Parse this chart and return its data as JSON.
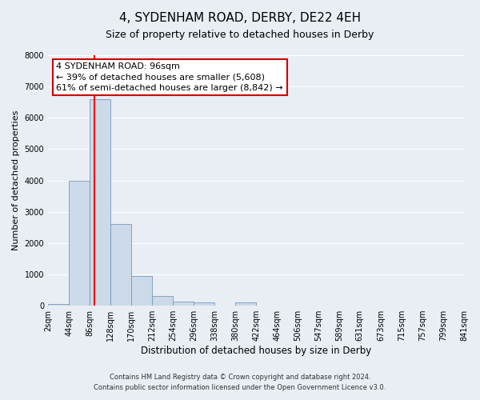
{
  "title": "4, SYDENHAM ROAD, DERBY, DE22 4EH",
  "subtitle": "Size of property relative to detached houses in Derby",
  "xlabel": "Distribution of detached houses by size in Derby",
  "ylabel": "Number of detached properties",
  "bin_edges": [
    2,
    44,
    86,
    128,
    170,
    212,
    254,
    296,
    338,
    380,
    422,
    464,
    506,
    547,
    589,
    631,
    673,
    715,
    757,
    799,
    841
  ],
  "bar_heights": [
    60,
    4000,
    6600,
    2600,
    950,
    320,
    140,
    100,
    0,
    100,
    0,
    0,
    0,
    0,
    0,
    0,
    0,
    0,
    0,
    0
  ],
  "bar_color": "#ccd9e8",
  "bar_edge_color": "#7799bb",
  "red_line_x": 96,
  "ylim": [
    0,
    8000
  ],
  "yticks": [
    0,
    1000,
    2000,
    3000,
    4000,
    5000,
    6000,
    7000,
    8000
  ],
  "annotation_text": "4 SYDENHAM ROAD: 96sqm\n← 39% of detached houses are smaller (5,608)\n61% of semi-detached houses are larger (8,842) →",
  "annotation_box_color": "#ffffff",
  "annotation_box_edge": "#cc0000",
  "footer_line1": "Contains HM Land Registry data © Crown copyright and database right 2024.",
  "footer_line2": "Contains public sector information licensed under the Open Government Licence v3.0.",
  "background_color": "#e8eef4",
  "plot_bg_color": "#e8eef4",
  "grid_color": "#ffffff",
  "tick_labels": [
    "2sqm",
    "44sqm",
    "86sqm",
    "128sqm",
    "170sqm",
    "212sqm",
    "254sqm",
    "296sqm",
    "338sqm",
    "380sqm",
    "422sqm",
    "464sqm",
    "506sqm",
    "547sqm",
    "589sqm",
    "631sqm",
    "673sqm",
    "715sqm",
    "757sqm",
    "799sqm",
    "841sqm"
  ],
  "title_fontsize": 11,
  "subtitle_fontsize": 9,
  "ylabel_fontsize": 8,
  "xlabel_fontsize": 8.5,
  "tick_fontsize": 7,
  "annotation_fontsize": 8,
  "footer_fontsize": 6
}
